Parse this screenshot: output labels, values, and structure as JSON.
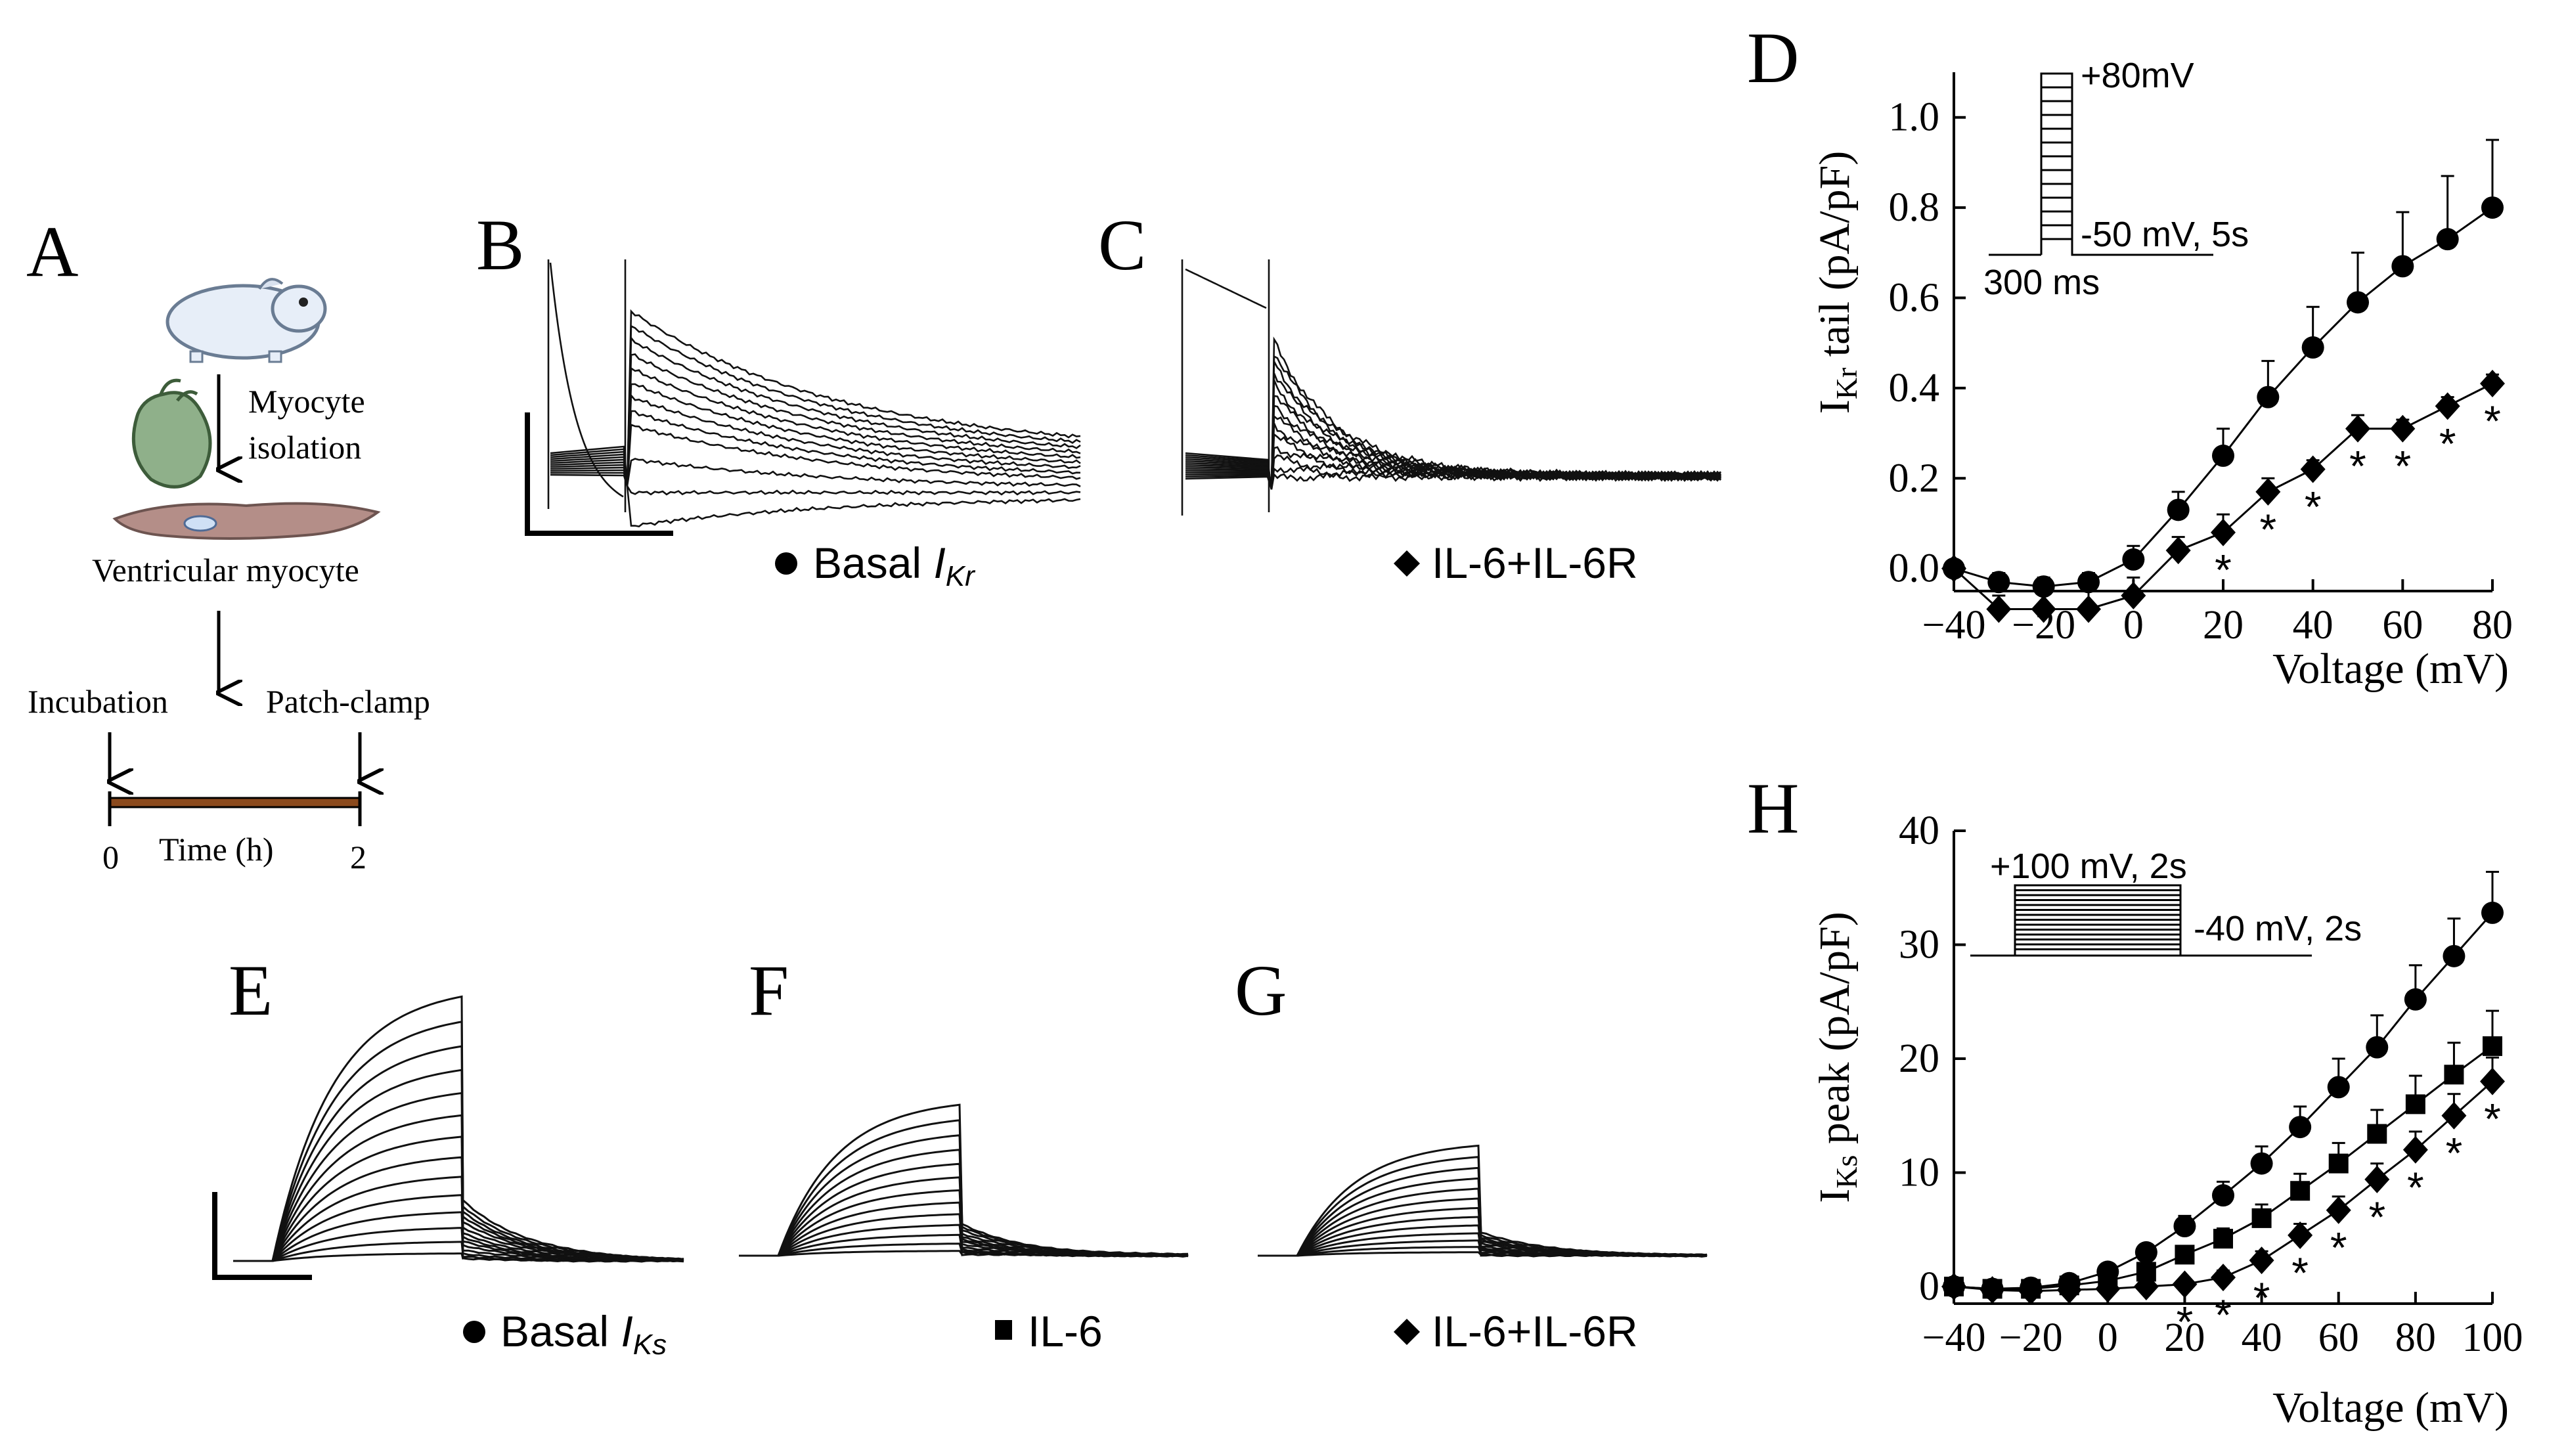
{
  "panels": {
    "A": {
      "letter": "A",
      "step_label_1": "Myocyte",
      "step_label_2": "isolation",
      "cell_label": "Ventricular myocyte",
      "incubation_label": "Incubation",
      "patch_label": "Patch-clamp",
      "time_start": "0",
      "time_end": "2",
      "time_axis_label": "Time (h)"
    },
    "B": {
      "letter": "B",
      "legend_prefix": "Basal ",
      "legend_var": "I",
      "legend_sub": "Kr",
      "marker": "circle"
    },
    "C": {
      "letter": "C",
      "legend_text": "IL-6+IL-6R",
      "marker": "diamond"
    },
    "E": {
      "letter": "E",
      "legend_prefix": "Basal ",
      "legend_var": "I",
      "legend_sub": "Ks",
      "marker": "circle"
    },
    "F": {
      "letter": "F",
      "legend_text": "IL-6",
      "marker": "square"
    },
    "G": {
      "letter": "G",
      "legend_text": "IL-6+IL-6R",
      "marker": "diamond"
    }
  },
  "chart_data": [
    {
      "panel": "D",
      "type": "line",
      "letter": "D",
      "xlabel": "Voltage (mV)",
      "ylabel_main": "I",
      "ylabel_sub": "Kr",
      "ylabel_rest": " tail (pA/pF)",
      "xlim": [
        -40,
        80
      ],
      "ylim": [
        -0.05,
        1.1
      ],
      "xticks": [
        -40,
        -20,
        0,
        20,
        40,
        60,
        80
      ],
      "xtick_labels": [
        "−40",
        "−20",
        "0",
        "20",
        "40",
        "60",
        "80"
      ],
      "yticks": [
        0.0,
        0.2,
        0.4,
        0.6,
        0.8,
        1.0
      ],
      "ytick_labels": [
        "0.0",
        "0.2",
        "0.4",
        "0.6",
        "0.8",
        "1.0"
      ],
      "x": [
        -40,
        -30,
        -20,
        -10,
        0,
        10,
        20,
        30,
        40,
        50,
        60,
        70,
        80
      ],
      "series": [
        {
          "name": "Basal IKr",
          "marker": "circle",
          "values": [
            0.0,
            -0.03,
            -0.04,
            -0.03,
            0.02,
            0.13,
            0.25,
            0.38,
            0.49,
            0.59,
            0.67,
            0.73,
            0.8
          ],
          "errors": [
            0.0,
            0.02,
            0.02,
            0.02,
            0.03,
            0.04,
            0.06,
            0.08,
            0.09,
            0.11,
            0.12,
            0.14,
            0.15
          ]
        },
        {
          "name": "IL-6+IL-6R",
          "marker": "diamond",
          "values": [
            0.0,
            -0.09,
            -0.09,
            -0.09,
            -0.06,
            0.04,
            0.08,
            0.17,
            0.22,
            0.31,
            0.31,
            0.36,
            0.41
          ],
          "errors": [
            0.0,
            0.03,
            0.04,
            0.04,
            0.04,
            0.03,
            0.04,
            0.03,
            0.02,
            0.03,
            0.02,
            0.02,
            0.02
          ]
        }
      ],
      "significance": {
        "symbol": "*",
        "x": [
          20,
          30,
          40,
          50,
          60,
          70,
          80
        ]
      },
      "protocol": {
        "top_label": "+80mV",
        "hold_label": "-50 mV, 5s",
        "time_label": "300 ms"
      }
    },
    {
      "panel": "H",
      "type": "line",
      "letter": "H",
      "xlabel": "Voltage (mV)",
      "ylabel_main": "I",
      "ylabel_sub": "Ks",
      "ylabel_rest": " peak (pA/pF)",
      "xlim": [
        -40,
        100
      ],
      "ylim": [
        -1.5,
        40
      ],
      "xticks": [
        -40,
        -20,
        0,
        20,
        40,
        60,
        80,
        100
      ],
      "xtick_labels": [
        "−40",
        "−20",
        "0",
        "20",
        "40",
        "60",
        "80",
        "100"
      ],
      "yticks": [
        0,
        10,
        20,
        30,
        40
      ],
      "ytick_labels": [
        "0",
        "10",
        "20",
        "30",
        "40"
      ],
      "x": [
        -40,
        -30,
        -20,
        -10,
        0,
        10,
        20,
        30,
        40,
        50,
        60,
        70,
        80,
        90,
        100
      ],
      "series": [
        {
          "name": "Basal IKs",
          "marker": "circle",
          "values": [
            0.0,
            -0.2,
            -0.1,
            0.3,
            1.3,
            3.0,
            5.3,
            8.0,
            10.8,
            14.0,
            17.5,
            21.0,
            25.2,
            29.0,
            32.8
          ],
          "errors": [
            0.3,
            0.3,
            0.3,
            0.4,
            0.5,
            0.6,
            0.9,
            1.2,
            1.5,
            1.8,
            2.5,
            2.8,
            3.0,
            3.3,
            3.6
          ]
        },
        {
          "name": "IL-6",
          "marker": "square",
          "values": [
            0.0,
            -0.2,
            -0.2,
            0.1,
            0.5,
            1.3,
            2.8,
            4.2,
            6.0,
            8.4,
            10.8,
            13.4,
            16.0,
            18.6,
            21.1
          ],
          "errors": [
            0.3,
            0.3,
            0.3,
            0.3,
            0.4,
            0.5,
            0.7,
            0.9,
            1.2,
            1.5,
            1.8,
            2.1,
            2.5,
            2.8,
            3.1
          ]
        },
        {
          "name": "IL-6+IL-6R",
          "marker": "diamond",
          "values": [
            0.0,
            -0.3,
            -0.4,
            -0.3,
            -0.2,
            0.0,
            0.2,
            0.8,
            2.3,
            4.5,
            6.7,
            9.4,
            12.0,
            15.0,
            18.0
          ],
          "errors": [
            0.2,
            0.2,
            0.2,
            0.2,
            0.2,
            0.3,
            0.4,
            0.6,
            0.8,
            1.0,
            1.2,
            1.4,
            1.6,
            1.9,
            2.1
          ]
        }
      ],
      "significance": {
        "symbol": "*",
        "x": [
          20,
          30,
          40,
          50,
          60,
          70,
          80,
          90,
          100
        ]
      },
      "protocol": {
        "top_label": "+100 mV, 2s",
        "hold_label": "-40 mV, 2s"
      }
    }
  ]
}
